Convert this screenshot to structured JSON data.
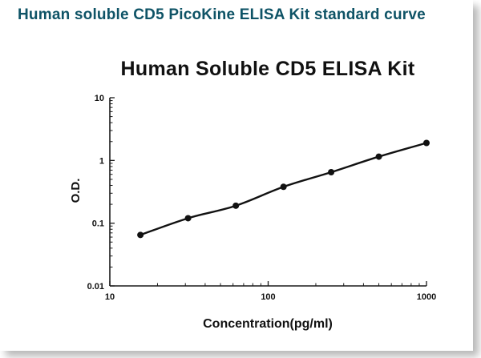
{
  "header": {
    "title": "Human soluble CD5 PicoKine ELISA Kit standard curve"
  },
  "colors": {
    "heading": "#0e5366",
    "axis": "#1a1a1a",
    "curve": "#111111",
    "marker": "#111111",
    "background": "#ffffff"
  },
  "chart_data": {
    "type": "line",
    "title": "Human Soluble CD5 ELISA Kit",
    "xlabel": "Concentration(pg/ml)",
    "ylabel": "O.D.",
    "x_scale": "log",
    "y_scale": "log",
    "xlim": [
      10,
      1000
    ],
    "ylim": [
      0.01,
      10
    ],
    "x_ticks": [
      "10",
      "100",
      "1000"
    ],
    "y_ticks": [
      "10",
      "1",
      "0.1",
      "0.01"
    ],
    "grid": false,
    "legend_position": "none",
    "series": [
      {
        "name": "standard-curve",
        "x": [
          15.6,
          31.2,
          62.5,
          125,
          250,
          500,
          1000
        ],
        "y": [
          0.065,
          0.12,
          0.19,
          0.38,
          0.65,
          1.15,
          1.9
        ]
      }
    ]
  }
}
